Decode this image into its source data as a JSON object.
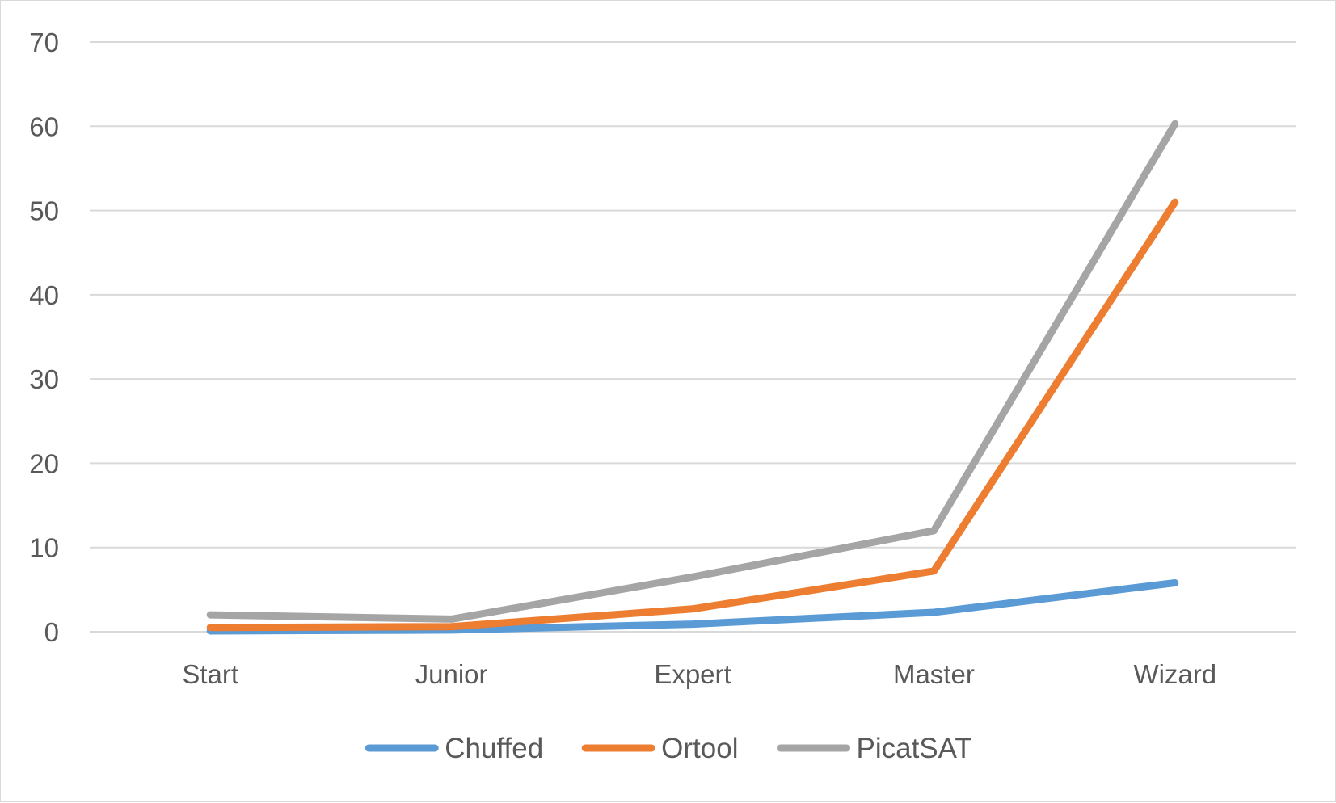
{
  "chart_data": {
    "type": "line",
    "title": "",
    "xlabel": "",
    "ylabel": "",
    "categories": [
      "Start",
      "Junior",
      "Expert",
      "Master",
      "Wizard"
    ],
    "ylim": [
      0,
      70
    ],
    "yticks": [
      0,
      10,
      20,
      30,
      40,
      50,
      60,
      70
    ],
    "grid": true,
    "legend": "bottom",
    "series": [
      {
        "name": "Chuffed",
        "color": "#5B9BD5",
        "values": [
          0.1,
          0.2,
          0.9,
          2.3,
          5.8
        ]
      },
      {
        "name": "Ortool",
        "color": "#ED7D31",
        "values": [
          0.5,
          0.6,
          2.7,
          7.2,
          51.0
        ]
      },
      {
        "name": "PicatSAT",
        "color": "#A5A5A5",
        "values": [
          2.0,
          1.5,
          6.5,
          12.0,
          60.3
        ]
      }
    ]
  }
}
